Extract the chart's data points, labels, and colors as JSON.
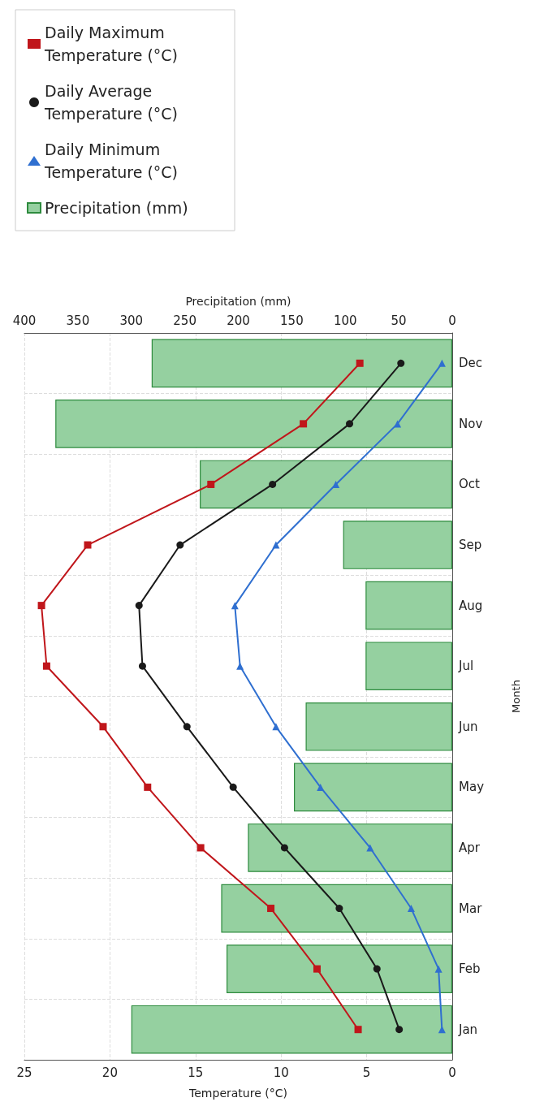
{
  "chart_data": {
    "type": "line",
    "orientation": "horizontal",
    "xlabel": "Temperature (°C)",
    "x2label": "Precipitation (mm)",
    "ylabel": "Month",
    "categories": [
      "Dec",
      "Nov",
      "Oct",
      "Sep",
      "Aug",
      "Jul",
      "Jun",
      "May",
      "Apr",
      "Mar",
      "Feb",
      "Jan"
    ],
    "series": [
      {
        "name": "Daily Maximum Temperature (°C)",
        "color": "#c0161b",
        "marker": "square",
        "values": [
          5.4,
          8.7,
          14.1,
          21.3,
          24.0,
          23.7,
          20.4,
          17.8,
          14.7,
          10.6,
          7.9,
          5.5
        ]
      },
      {
        "name": "Daily Average Temperature (°C)",
        "color": "#1a1a1a",
        "marker": "circle",
        "values": [
          3.0,
          6.0,
          10.5,
          15.9,
          18.3,
          18.1,
          15.5,
          12.8,
          9.8,
          6.6,
          4.4,
          3.1
        ]
      },
      {
        "name": "Daily Minimum Temperature (°C)",
        "color": "#2f6fd0",
        "marker": "triangle",
        "values": [
          0.6,
          3.2,
          6.8,
          10.3,
          12.7,
          12.4,
          10.3,
          7.7,
          4.8,
          2.4,
          0.8,
          0.6
        ]
      },
      {
        "name": "Precipitation (mm)",
        "type": "bar",
        "axis": "x2",
        "color": "#95d0a0",
        "marker": "square",
        "values": [
          281,
          371,
          236,
          102,
          81,
          81,
          137,
          148,
          191,
          216,
          211,
          300
        ]
      }
    ],
    "xlim": [
      25,
      0
    ],
    "xticks": [
      0,
      5,
      10,
      15,
      20,
      25
    ],
    "x2lim": [
      400,
      0
    ],
    "x2ticks": [
      0,
      50,
      100,
      150,
      200,
      250,
      300,
      350,
      400
    ],
    "grid": true,
    "legend": "top left",
    "line_style": "solid"
  }
}
